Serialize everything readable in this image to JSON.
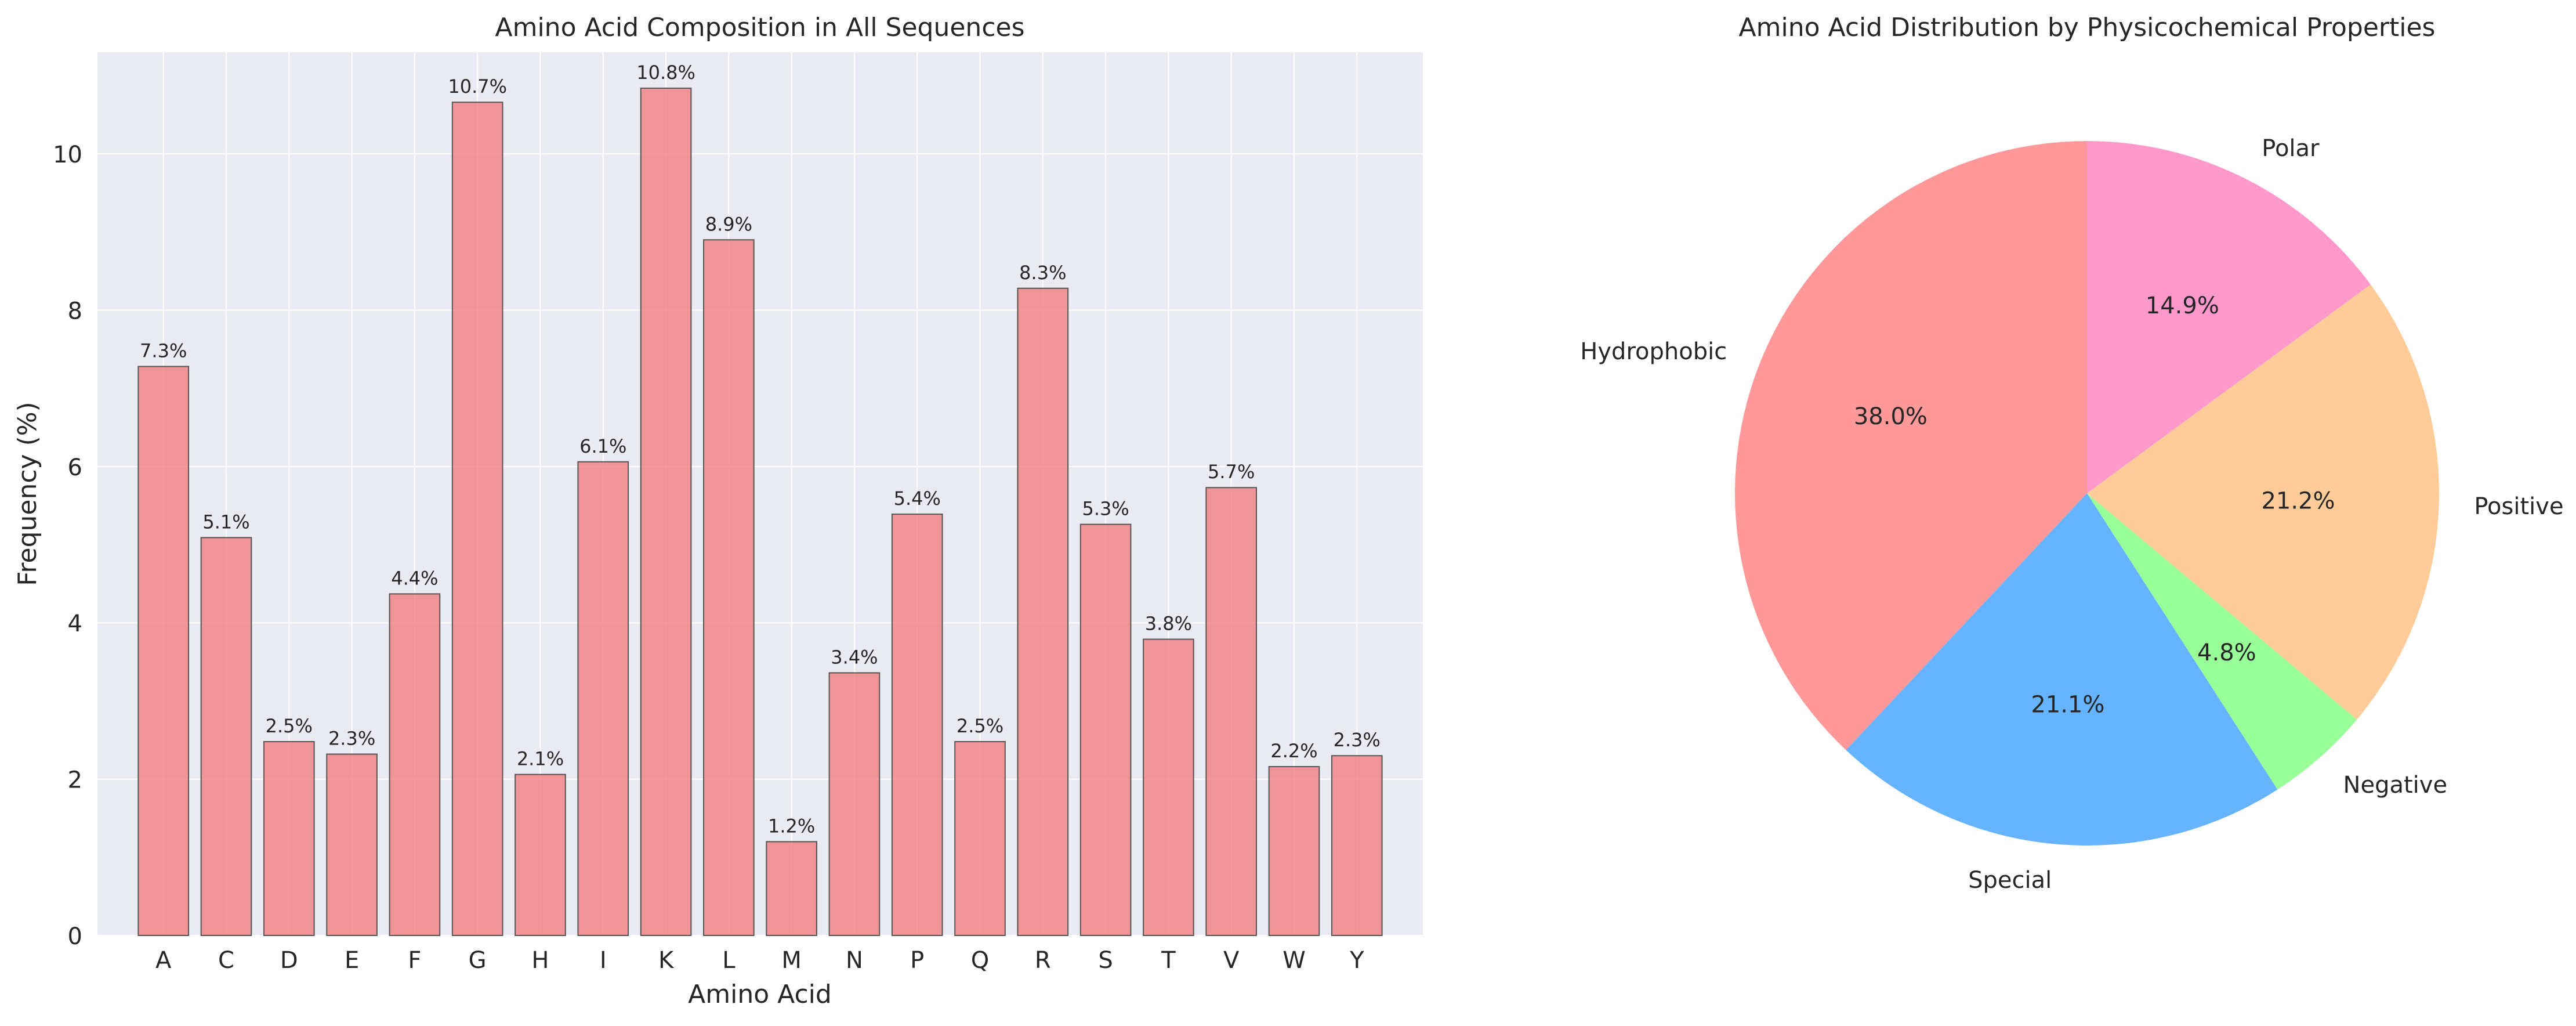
{
  "chart_data": [
    {
      "type": "bar",
      "title": "Amino Acid Composition in All Sequences",
      "xlabel": "Amino Acid",
      "ylabel": "Frequency (%)",
      "ylim": [
        0,
        11.3
      ],
      "yticks": [
        0,
        2,
        4,
        6,
        8,
        10
      ],
      "grid": true,
      "categories": [
        "A",
        "C",
        "D",
        "E",
        "F",
        "G",
        "H",
        "I",
        "K",
        "L",
        "M",
        "N",
        "P",
        "Q",
        "R",
        "S",
        "T",
        "V",
        "W",
        "Y"
      ],
      "values": [
        7.28,
        5.09,
        2.48,
        2.32,
        4.37,
        10.66,
        2.06,
        6.06,
        10.84,
        8.9,
        1.2,
        3.36,
        5.39,
        2.48,
        8.28,
        5.26,
        3.79,
        5.73,
        2.16,
        2.3
      ],
      "data_labels": [
        "7.3%",
        "5.1%",
        "2.5%",
        "2.3%",
        "4.4%",
        "10.7%",
        "2.1%",
        "6.1%",
        "10.8%",
        "8.9%",
        "1.2%",
        "3.4%",
        "5.4%",
        "2.5%",
        "8.3%",
        "5.3%",
        "3.8%",
        "5.7%",
        "2.2%",
        "2.3%"
      ],
      "bar_color": "#f08080"
    },
    {
      "type": "pie",
      "title": "Amino Acid Distribution by Physicochemical Properties",
      "start_angle_deg": 90,
      "direction": "counterclockwise",
      "slices": [
        {
          "label": "Hydrophobic",
          "value": 38.0,
          "pct_label": "38.0%",
          "color": "#ff9999"
        },
        {
          "label": "Special",
          "value": 21.1,
          "pct_label": "21.1%",
          "color": "#66b3ff"
        },
        {
          "label": "Negative",
          "value": 4.8,
          "pct_label": "4.8%",
          "color": "#99ff99"
        },
        {
          "label": "Positive",
          "value": 21.2,
          "pct_label": "21.2%",
          "color": "#ffcc99"
        },
        {
          "label": "Polar",
          "value": 14.9,
          "pct_label": "14.9%",
          "color": "#ff99cc"
        }
      ]
    }
  ]
}
